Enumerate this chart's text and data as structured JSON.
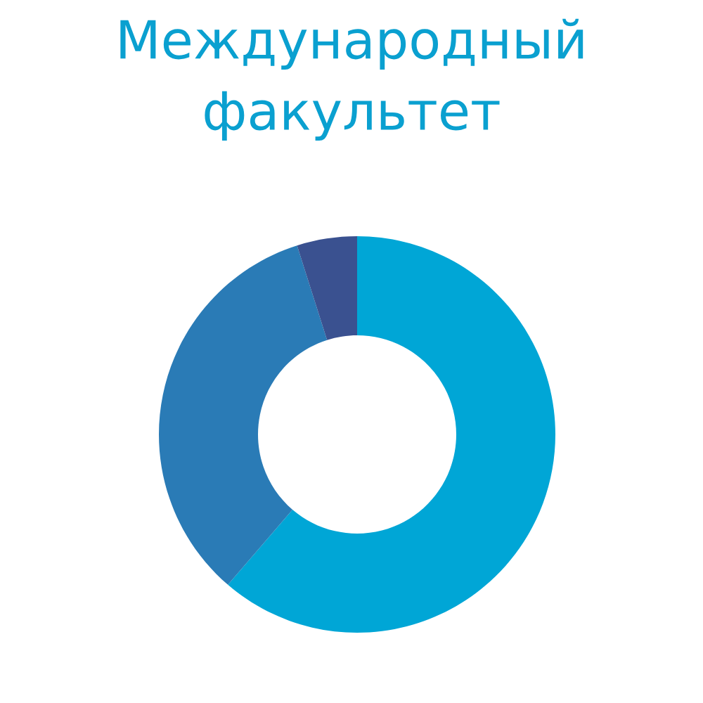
{
  "chart_data": {
    "type": "donut",
    "title": "Международный факультет",
    "categories": [
      null,
      null,
      null
    ],
    "values": [
      61.3,
      33.8,
      4.9
    ],
    "colors": [
      "#00a6d6",
      "#2a7bb6",
      "#3a5190"
    ]
  }
}
